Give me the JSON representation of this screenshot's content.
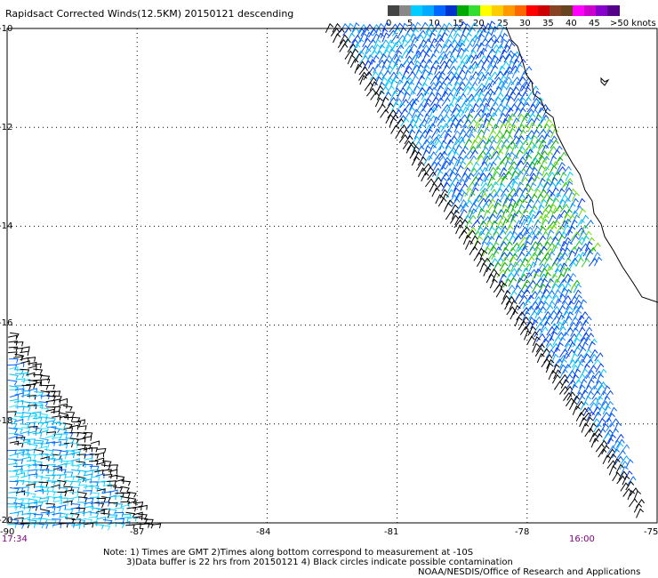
{
  "title": "Rapidsact Corrected Winds(12.5KM) 20150121 descending",
  "legend": {
    "labels": [
      "0",
      "5",
      "10",
      "15",
      "20",
      "25",
      "30",
      "35",
      "40",
      "45",
      ">50 knots"
    ],
    "colors": [
      "#444444",
      "#888888",
      "#00ccff",
      "#00aaff",
      "#0066ff",
      "#0033cc",
      "#00aa00",
      "#33dd33",
      "#ffff00",
      "#ffcc00",
      "#ff9900",
      "#ff6600",
      "#ff0000",
      "#cc0000",
      "#884422",
      "#664422",
      "#ff00ff",
      "#cc00cc",
      "#8800cc",
      "#550088"
    ]
  },
  "map": {
    "lon_range": [
      -90,
      -75
    ],
    "lat_range": [
      -20,
      -10
    ],
    "lon_ticks": [
      -90,
      -87,
      -84,
      -81,
      -78,
      -75
    ],
    "lat_ticks": [
      -10,
      -12,
      -14,
      -16,
      -18,
      -20
    ],
    "lon_tick_labels": [
      "-90",
      "-87",
      "-84",
      "-81",
      "-78",
      "-75"
    ],
    "lat_tick_labels": [
      "-10",
      "-12",
      "-14",
      "-16",
      "-18",
      "-20"
    ],
    "time_left": "17:34",
    "time_right": "16:00"
  },
  "notes": {
    "line1": "Note:  1) Times are GMT  2)Times along bottom correspond to measurement at -10S",
    "line2": "3)Data buffer is 22 hrs from 20150121  4) Black circles indicate possible contamination",
    "credit": "NOAA/NESDIS/Office of Research and Applications"
  }
}
